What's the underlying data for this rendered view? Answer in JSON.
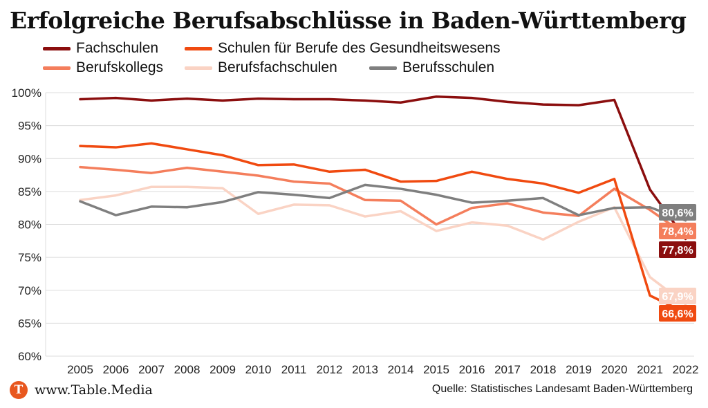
{
  "chart_data": {
    "type": "line",
    "title": "Erfolgreiche Berufsabschlüsse in Baden-Württemberg",
    "x": [
      "2005",
      "2006",
      "2007",
      "2008",
      "2009",
      "2010",
      "2011",
      "2012",
      "2013",
      "2014",
      "2015",
      "2016",
      "2017",
      "2018",
      "2019",
      "2020",
      "2021",
      "2022"
    ],
    "ylim": [
      60,
      100
    ],
    "yticks": [
      "60%",
      "65%",
      "70%",
      "75%",
      "80%",
      "85%",
      "90%",
      "95%",
      "100%"
    ],
    "grid": true,
    "legend_position": "top",
    "series": [
      {
        "name": "Fachschulen",
        "color": "#8b0e0e",
        "values": [
          99.0,
          99.2,
          98.8,
          99.1,
          98.8,
          99.1,
          99.0,
          99.0,
          98.8,
          98.5,
          99.4,
          99.2,
          98.6,
          98.2,
          98.1,
          98.9,
          85.3,
          77.8
        ],
        "end_label": "77,8%"
      },
      {
        "name": "Schulen für Berufe des Gesundheitswesens",
        "color": "#f04a10",
        "values": [
          91.9,
          91.7,
          92.3,
          91.4,
          90.5,
          89.0,
          89.1,
          88.0,
          88.3,
          86.5,
          86.6,
          88.0,
          86.9,
          86.2,
          84.8,
          86.9,
          69.2,
          66.6
        ],
        "end_label": "66,6%"
      },
      {
        "name": "Berufskollegs",
        "color": "#f47e5c",
        "values": [
          88.7,
          88.3,
          87.8,
          88.6,
          88.0,
          87.4,
          86.5,
          86.2,
          83.7,
          83.6,
          80.0,
          82.5,
          83.2,
          81.8,
          81.3,
          85.4,
          82.2,
          78.4
        ],
        "end_label": "78,4%"
      },
      {
        "name": "Berufsfachschulen",
        "color": "#fad3c4",
        "values": [
          83.7,
          84.4,
          85.7,
          85.7,
          85.5,
          81.6,
          83.0,
          82.9,
          81.2,
          82.0,
          79.0,
          80.3,
          79.8,
          77.7,
          80.4,
          82.6,
          72.0,
          67.9
        ],
        "end_label": "67,9%"
      },
      {
        "name": "Berufsschulen",
        "color": "#7f7f7f",
        "values": [
          83.5,
          81.4,
          82.7,
          82.6,
          83.4,
          84.9,
          84.5,
          84.0,
          86.0,
          85.4,
          84.5,
          83.3,
          83.6,
          84.0,
          81.4,
          82.5,
          82.6,
          80.6
        ],
        "end_label": "80,6%"
      }
    ]
  },
  "footer": {
    "logo_letter": "T",
    "site": "www.Table.Media",
    "source": "Quelle: Statistisches Landesamt Baden-Württemberg"
  }
}
